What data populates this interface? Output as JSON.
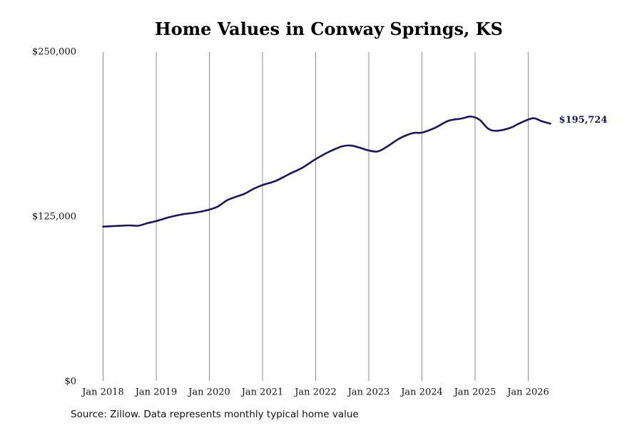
{
  "chart_data": {
    "type": "line",
    "title": "Home Values in Conway Springs, KS",
    "xlabel": "",
    "ylabel": "",
    "ylim": [
      0,
      250000
    ],
    "y_ticks": [
      0,
      125000,
      250000
    ],
    "y_tick_labels": [
      "$0",
      "$125,000",
      "$250,000"
    ],
    "x_ticks": [
      "2018-01",
      "2019-01",
      "2020-01",
      "2021-01",
      "2022-01",
      "2023-01",
      "2024-01",
      "2025-01",
      "2026-01"
    ],
    "x_tick_labels": [
      "Jan 2018",
      "Jan 2019",
      "Jan 2020",
      "Jan 2021",
      "Jan 2022",
      "Jan 2023",
      "Jan 2024",
      "Jan 2025",
      "Jan 2026"
    ],
    "grid": {
      "vertical": true,
      "horizontal": false
    },
    "line_color": "#161660",
    "end_label": "$195,724",
    "series": [
      {
        "points": [
          [
            "2018-01",
            117600
          ],
          [
            "2018-04",
            118100
          ],
          [
            "2018-07",
            118500
          ],
          [
            "2018-09",
            118300
          ],
          [
            "2018-11",
            120200
          ],
          [
            "2019-01",
            121800
          ],
          [
            "2019-04",
            124800
          ],
          [
            "2019-07",
            127000
          ],
          [
            "2019-10",
            128300
          ],
          [
            "2020-01",
            130500
          ],
          [
            "2020-03",
            133000
          ],
          [
            "2020-05",
            137600
          ],
          [
            "2020-07",
            140200
          ],
          [
            "2020-09",
            142600
          ],
          [
            "2020-11",
            146300
          ],
          [
            "2021-01",
            149100
          ],
          [
            "2021-04",
            152300
          ],
          [
            "2021-07",
            157400
          ],
          [
            "2021-10",
            162300
          ],
          [
            "2022-01",
            168800
          ],
          [
            "2022-04",
            174300
          ],
          [
            "2022-07",
            178500
          ],
          [
            "2022-09",
            179100
          ],
          [
            "2022-11",
            177400
          ],
          [
            "2023-01",
            175400
          ],
          [
            "2023-03",
            174600
          ],
          [
            "2023-05",
            178000
          ],
          [
            "2023-08",
            184600
          ],
          [
            "2023-11",
            188600
          ],
          [
            "2024-01",
            188900
          ],
          [
            "2024-04",
            192600
          ],
          [
            "2024-07",
            197900
          ],
          [
            "2024-10",
            199600
          ],
          [
            "2024-12",
            201100
          ],
          [
            "2025-02",
            198700
          ],
          [
            "2025-04",
            191800
          ],
          [
            "2025-06",
            190300
          ],
          [
            "2025-09",
            192600
          ],
          [
            "2025-11",
            195900
          ],
          [
            "2026-02",
            199800
          ],
          [
            "2026-04",
            197600
          ],
          [
            "2026-06",
            195724
          ]
        ]
      }
    ]
  },
  "footer": {
    "source": "Source: Zillow. Data represents monthly typical home value"
  }
}
